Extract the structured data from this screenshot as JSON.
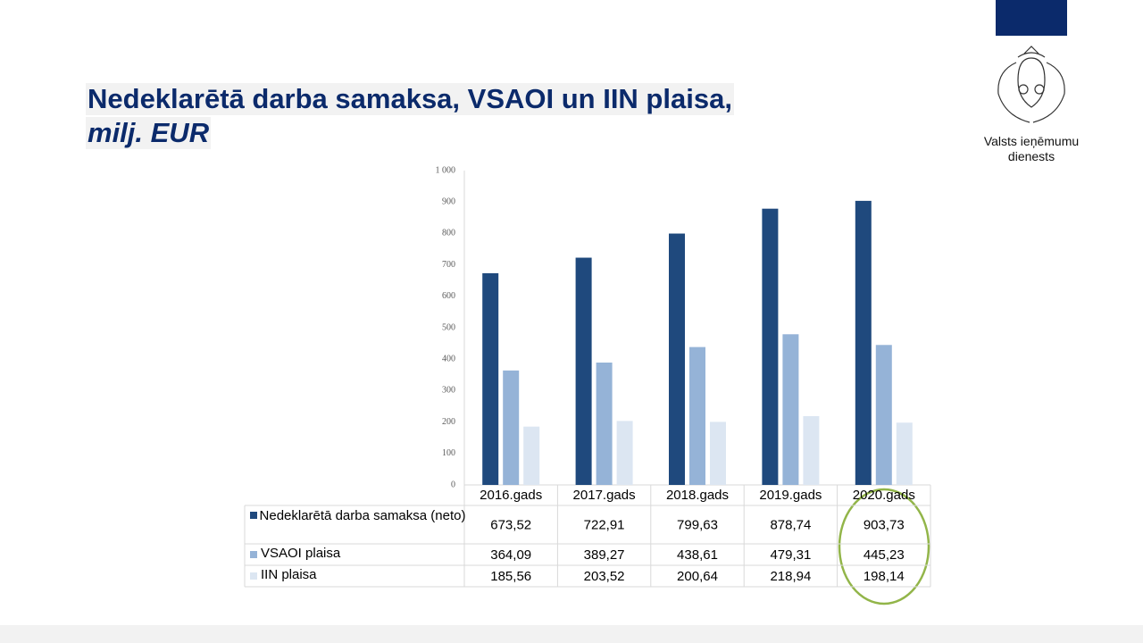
{
  "chart_data": {
    "type": "bar",
    "title": "Nedeklarētā darba samaksa, VSAOI un IIN plaisa,",
    "subtitle": "milj. EUR",
    "categories": [
      "2016.gads",
      "2017.gads",
      "2018.gads",
      "2019.gads",
      "2020.gads"
    ],
    "series": [
      {
        "name": "Nedeklarētā darba samaksa (neto)",
        "color": "#1f497d",
        "values": [
          673.52,
          722.91,
          799.63,
          878.74,
          903.73
        ],
        "value_labels": [
          "673,52",
          "722,91",
          "799,63",
          "878,74",
          "903,73"
        ]
      },
      {
        "name": "VSAOI plaisa",
        "color": "#95b3d7",
        "values": [
          364.09,
          389.27,
          438.61,
          479.31,
          445.23
        ],
        "value_labels": [
          "364,09",
          "389,27",
          "438,61",
          "479,31",
          "445,23"
        ]
      },
      {
        "name": "IIN plaisa",
        "color": "#dce6f2",
        "values": [
          185.56,
          203.52,
          200.64,
          218.94,
          198.14
        ],
        "value_labels": [
          "185,56",
          "203,52",
          "200,64",
          "218,94",
          "198,14"
        ]
      }
    ],
    "ylim": [
      0,
      1000
    ],
    "yticks": [
      0,
      100,
      200,
      300,
      400,
      500,
      600,
      700,
      800,
      900,
      {
        "value": 1000,
        "label": "1 000"
      }
    ],
    "grid": false
  },
  "logo": {
    "lines": [
      "Valsts ieņēmumu",
      "dienests"
    ]
  }
}
